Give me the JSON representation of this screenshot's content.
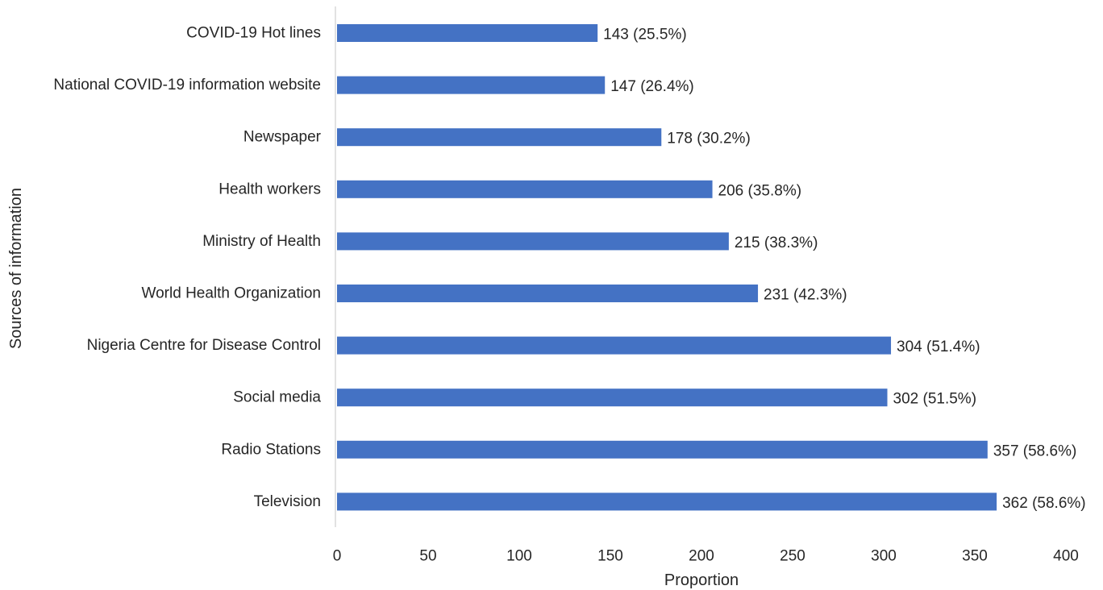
{
  "chart_data": {
    "type": "bar",
    "orientation": "horizontal",
    "title": "",
    "xlabel": "Proportion",
    "ylabel": "Sources of information",
    "xlim": [
      0,
      400
    ],
    "xticks": [
      "0",
      "50",
      "100",
      "150",
      "200",
      "250",
      "300",
      "350",
      "400"
    ],
    "grid": false,
    "legend": "none",
    "bar_color": "#4472C4",
    "categories": [
      "COVID-19 Hot lines",
      "National COVID-19 information website",
      "Newspaper",
      "Health workers",
      "Ministry of Health",
      "World Health Organization",
      "Nigeria Centre for Disease Control",
      "Social media",
      "Radio Stations",
      "Television"
    ],
    "values": [
      143,
      147,
      178,
      206,
      215,
      231,
      304,
      302,
      357,
      362
    ],
    "data_labels": [
      "143 (25.5%)",
      "147 (26.4%)",
      "178 (30.2%)",
      "206 (35.8%)",
      "215 (38.3%)",
      "231 (42.3%)",
      "304 (51.4%)",
      "302 (51.5%)",
      "357 (58.6%)",
      "362 (58.6%)"
    ]
  }
}
